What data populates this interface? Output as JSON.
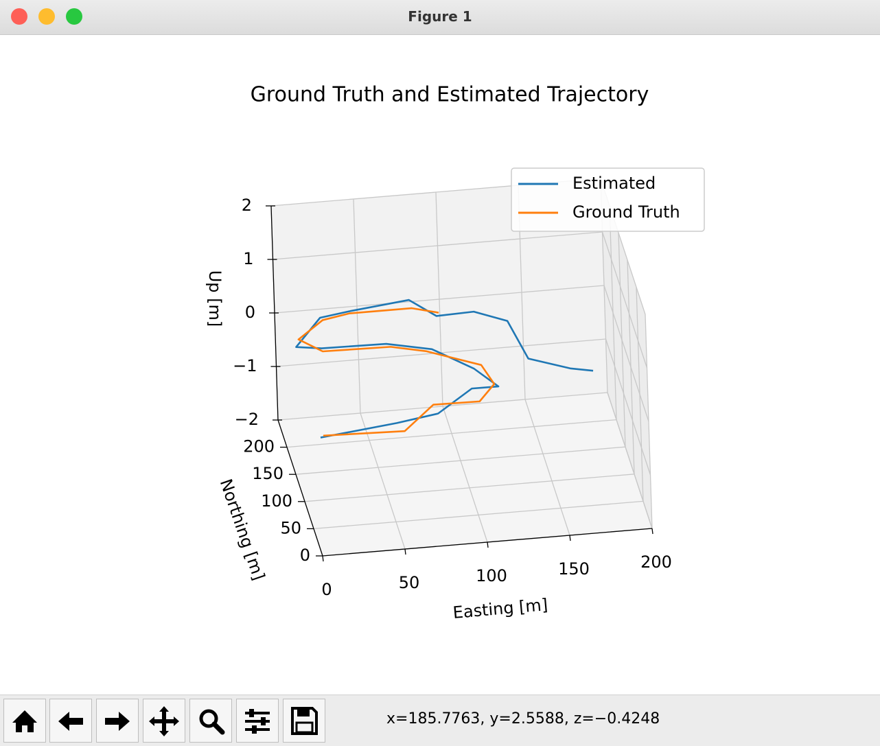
{
  "window": {
    "title": "Figure 1"
  },
  "chart_data": {
    "type": "line3d",
    "title": "Ground Truth and Estimated Trajectory",
    "xlabel": "Easting [m]",
    "ylabel": "Northing [m]",
    "zlabel": "Up [m]",
    "xlim": [
      0,
      200
    ],
    "ylim": [
      0,
      250
    ],
    "zlim": [
      -2,
      2
    ],
    "xticks": [
      0,
      50,
      100,
      150,
      200
    ],
    "yticks": [
      0,
      50,
      100,
      150,
      200
    ],
    "zticks": [
      {
        "value": -2,
        "label": "−2"
      },
      {
        "value": -1,
        "label": "−1"
      },
      0,
      1,
      2
    ],
    "grid": true,
    "legend": "upper right",
    "series": [
      {
        "name": "Estimated",
        "color": "#1f77b4",
        "x": [
          3,
          50,
          78,
          100,
          118,
          108,
          85,
          60,
          20,
          8,
          25,
          45,
          80,
          96,
          117,
          136,
          142,
          163,
          177
        ],
        "y": [
          20,
          25,
          55,
          66,
          85,
          130,
          152,
          178,
          170,
          205,
          225,
          242,
          234,
          230,
          213,
          201,
          140,
          97,
          99
        ],
        "z": [
          0,
          0.1,
          -0.1,
          0.2,
          0,
          -0.1,
          0.1,
          0,
          0.1,
          -0.2,
          0.1,
          0,
          0.2,
          -0.1,
          0.1,
          0,
          -0.1,
          0.1,
          0
        ]
      },
      {
        "name": "Ground Truth",
        "color": "#ff7f0e",
        "x": [
          5,
          54,
          76,
          104,
          116,
          112,
          82,
          62,
          21,
          9,
          27,
          44,
          82,
          97
        ],
        "y": [
          23,
          19,
          62,
          61,
          90,
          126,
          159,
          172,
          174,
          199,
          230,
          238,
          238,
          226
        ],
        "z": [
          0,
          0,
          0,
          0,
          0,
          0,
          0,
          0,
          0,
          0,
          0,
          0,
          0,
          0
        ]
      }
    ]
  },
  "status": "x=185.7763, y=2.5588, z=−0.4248"
}
